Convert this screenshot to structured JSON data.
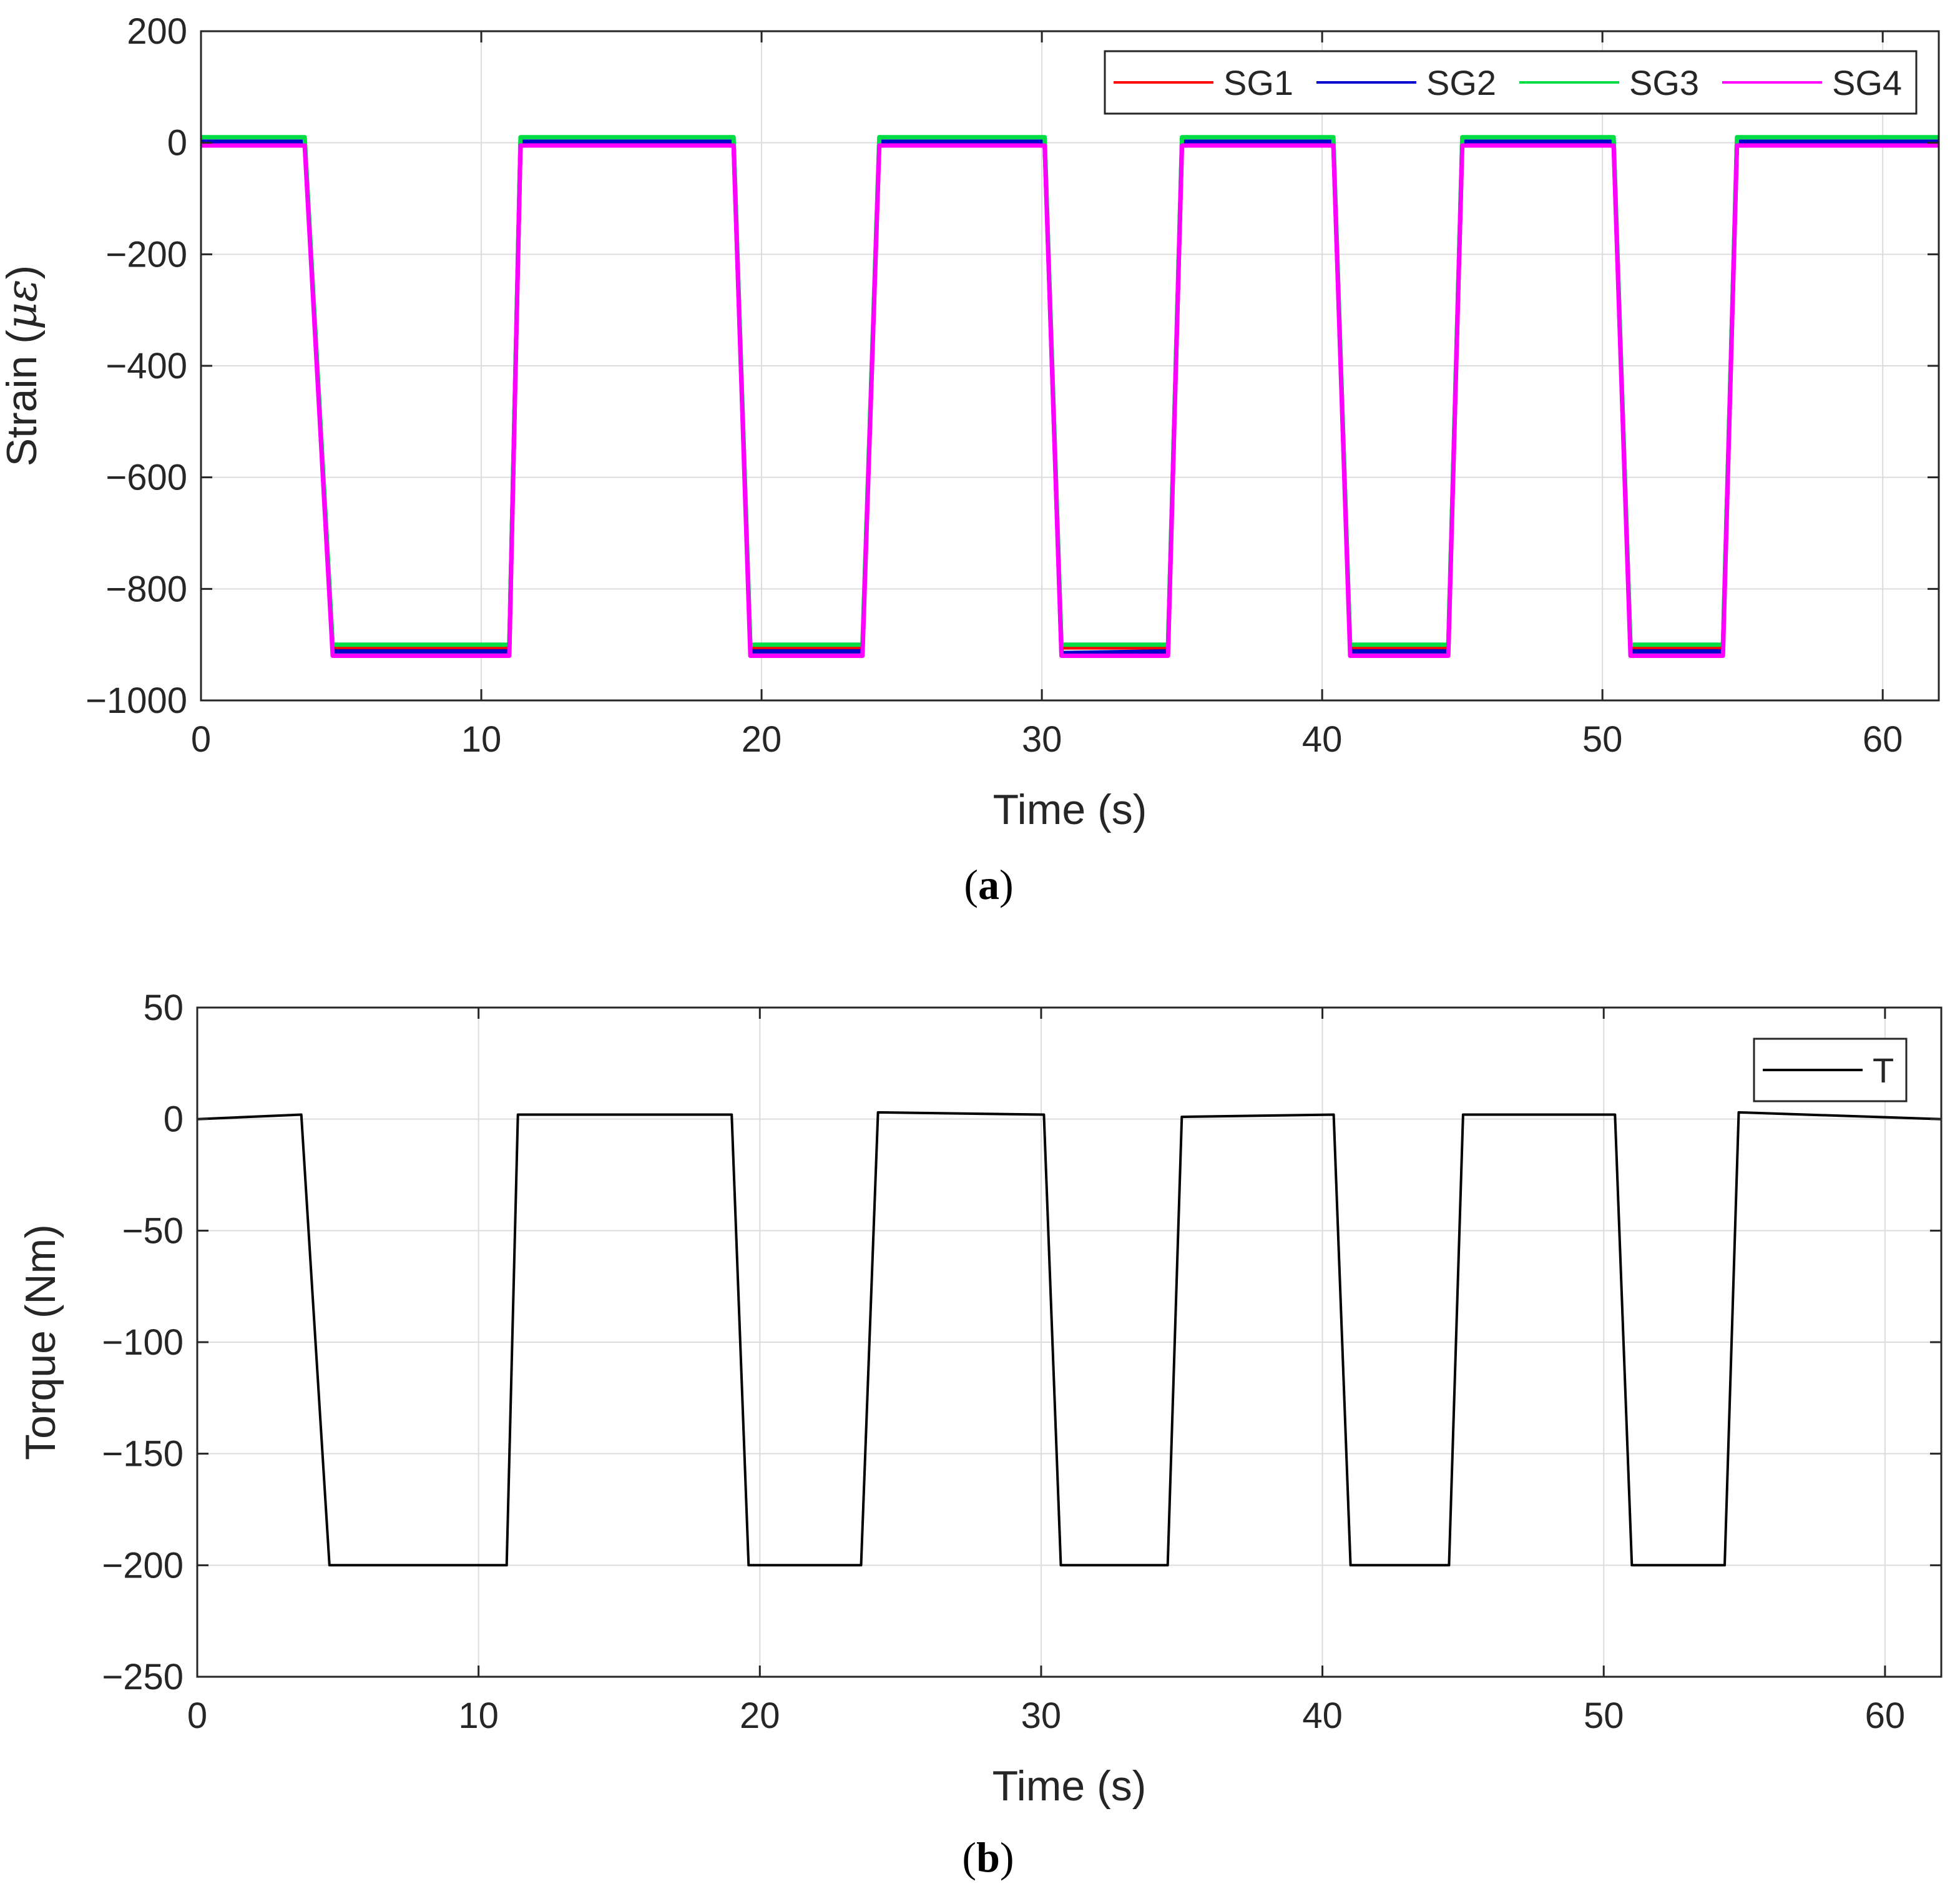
{
  "chart_data": [
    {
      "type": "line",
      "id": "a",
      "caption_label": "a",
      "xlabel": "Time (s)",
      "ylabel": "Strain (",
      "ylabel_unit": "με",
      "ylabel_close": ")",
      "xlim": [
        0,
        62
      ],
      "ylim": [
        -1000,
        200
      ],
      "xticks": [
        0,
        10,
        20,
        30,
        40,
        50,
        60
      ],
      "yticks": [
        200,
        0,
        -200,
        -400,
        -600,
        -800,
        -1000
      ],
      "ytick_labels": [
        "200",
        "0",
        "−200",
        "−400",
        "−600",
        "−800",
        "−1000"
      ],
      "grid": true,
      "legend_position": "top-right",
      "series": [
        {
          "name": "SG1",
          "color": "#ff0000",
          "x": [
            0,
            3.7,
            4.7,
            11.0,
            11.4,
            19.0,
            19.6,
            23.6,
            24.2,
            30.1,
            30.7,
            34.5,
            35.0,
            40.4,
            41.0,
            44.5,
            45.0,
            50.4,
            51.0,
            54.3,
            54.8,
            62
          ],
          "y": [
            0,
            0,
            -905,
            -905,
            0,
            0,
            -905,
            -905,
            0,
            0,
            -905,
            -905,
            0,
            0,
            -905,
            -905,
            0,
            0,
            -905,
            -905,
            0,
            0
          ]
        },
        {
          "name": "SG2",
          "color": "#0000cc",
          "x": [
            0,
            3.7,
            4.7,
            11.0,
            11.4,
            19.0,
            19.6,
            23.6,
            24.2,
            30.1,
            30.7,
            34.5,
            35.0,
            40.4,
            41.0,
            44.5,
            45.0,
            50.4,
            51.0,
            54.3,
            54.8,
            62
          ],
          "y": [
            2,
            2,
            -912,
            -912,
            2,
            2,
            -912,
            -912,
            2,
            2,
            -915,
            -912,
            2,
            2,
            -912,
            -912,
            2,
            2,
            -912,
            -912,
            2,
            2
          ]
        },
        {
          "name": "SG3",
          "color": "#00dd44",
          "x": [
            0,
            3.7,
            4.7,
            11.0,
            11.4,
            19.0,
            19.6,
            23.6,
            24.2,
            30.1,
            30.7,
            34.5,
            35.0,
            40.4,
            41.0,
            44.5,
            45.0,
            50.4,
            51.0,
            54.3,
            54.8,
            62
          ],
          "y": [
            10,
            10,
            -900,
            -900,
            10,
            10,
            -900,
            -900,
            10,
            10,
            -900,
            -900,
            10,
            10,
            -900,
            -900,
            10,
            10,
            -900,
            -900,
            10,
            10
          ]
        },
        {
          "name": "SG4",
          "color": "#ff00ff",
          "x": [
            0,
            3.7,
            4.7,
            11.0,
            11.4,
            19.0,
            19.6,
            23.6,
            24.2,
            30.1,
            30.7,
            34.5,
            35.0,
            40.4,
            41.0,
            44.5,
            45.0,
            50.4,
            51.0,
            54.3,
            54.8,
            62
          ],
          "y": [
            -5,
            -5,
            -920,
            -920,
            -5,
            -5,
            -920,
            -920,
            -5,
            -5,
            -920,
            -920,
            -5,
            -5,
            -920,
            -920,
            -5,
            -5,
            -920,
            -920,
            -5,
            -5
          ]
        }
      ]
    },
    {
      "type": "line",
      "id": "b",
      "caption_label": "b",
      "xlabel": "Time (s)",
      "ylabel": "Torque (Nm)",
      "xlim": [
        0,
        62
      ],
      "ylim": [
        -250,
        50
      ],
      "xticks": [
        0,
        10,
        20,
        30,
        40,
        50,
        60
      ],
      "yticks": [
        50,
        0,
        -50,
        -100,
        -150,
        -200,
        -250
      ],
      "ytick_labels": [
        "50",
        "0",
        "−50",
        "−100",
        "−150",
        "−200",
        "−250"
      ],
      "grid": true,
      "legend_position": "top-right",
      "series": [
        {
          "name": "T",
          "color": "#000000",
          "x": [
            0,
            3.7,
            4.7,
            11.0,
            11.4,
            19.0,
            19.6,
            23.6,
            24.2,
            30.1,
            30.7,
            34.5,
            35.0,
            40.4,
            41.0,
            44.5,
            45.0,
            50.4,
            51.0,
            54.3,
            54.8,
            62
          ],
          "y": [
            0,
            2,
            -200,
            -200,
            2,
            2,
            -200,
            -200,
            3,
            2,
            -200,
            -200,
            1,
            2,
            -200,
            -200,
            2,
            2,
            -200,
            -200,
            3,
            0
          ]
        }
      ]
    }
  ]
}
